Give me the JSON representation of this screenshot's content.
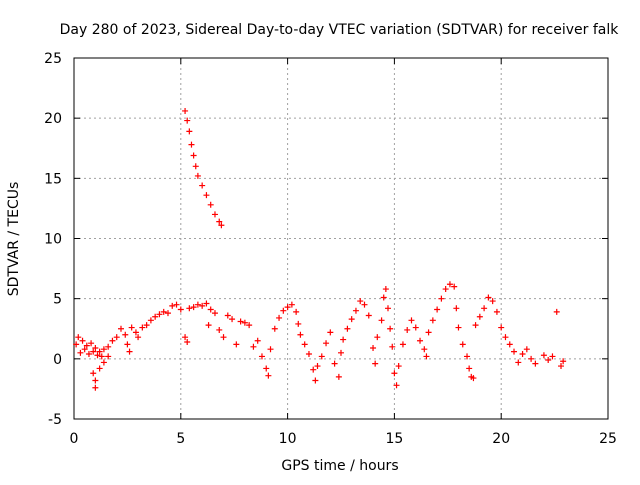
{
  "chart_data": {
    "type": "scatter",
    "title": "Day 280 of 2023, Sidereal Day-to-day VTEC variation (SDTVAR) for receiver falk",
    "xlabel": "GPS time / hours",
    "ylabel": "SDTVAR / TECUs",
    "xlim": [
      0,
      25
    ],
    "ylim": [
      -5,
      25
    ],
    "xticks": [
      0,
      5,
      10,
      15,
      20,
      25
    ],
    "yticks": [
      -5,
      0,
      5,
      10,
      15,
      20,
      25
    ],
    "x_tick_labels": [
      "0",
      "5",
      "10",
      "15",
      "20",
      "25"
    ],
    "y_tick_labels": [
      "-5",
      "0",
      "5",
      "10",
      "15",
      "20",
      "25"
    ],
    "grid": true,
    "marker": "plus",
    "series_color": "#ff0000",
    "series": [
      {
        "name": "SDTVAR",
        "points": [
          [
            0.1,
            1.2
          ],
          [
            0.2,
            1.8
          ],
          [
            0.3,
            0.5
          ],
          [
            0.4,
            1.5
          ],
          [
            0.5,
            0.8
          ],
          [
            0.6,
            1.1
          ],
          [
            0.7,
            0.4
          ],
          [
            0.8,
            1.3
          ],
          [
            0.9,
            0.6
          ],
          [
            1.0,
            0.9
          ],
          [
            1.1,
            0.3
          ],
          [
            1.2,
            0.6
          ],
          [
            1.3,
            0.2
          ],
          [
            1.4,
            0.8
          ],
          [
            1.6,
            1.0
          ],
          [
            1.8,
            1.5
          ],
          [
            0.9,
            -1.2
          ],
          [
            1.0,
            -1.8
          ],
          [
            1.0,
            -2.4
          ],
          [
            1.2,
            -0.8
          ],
          [
            1.4,
            -0.3
          ],
          [
            1.6,
            0.2
          ],
          [
            2.0,
            1.8
          ],
          [
            2.2,
            2.5
          ],
          [
            2.4,
            2.0
          ],
          [
            2.5,
            1.2
          ],
          [
            2.6,
            0.6
          ],
          [
            2.7,
            2.6
          ],
          [
            2.9,
            2.2
          ],
          [
            3.0,
            1.8
          ],
          [
            3.2,
            2.6
          ],
          [
            3.4,
            2.8
          ],
          [
            3.6,
            3.2
          ],
          [
            3.8,
            3.5
          ],
          [
            4.0,
            3.7
          ],
          [
            4.2,
            3.9
          ],
          [
            4.4,
            3.8
          ],
          [
            4.6,
            4.4
          ],
          [
            4.8,
            4.5
          ],
          [
            5.0,
            4.1
          ],
          [
            5.2,
            1.8
          ],
          [
            5.3,
            1.4
          ],
          [
            5.4,
            4.2
          ],
          [
            5.6,
            4.3
          ],
          [
            5.8,
            4.5
          ],
          [
            6.0,
            4.4
          ],
          [
            6.2,
            4.6
          ],
          [
            6.3,
            2.8
          ],
          [
            6.4,
            4.1
          ],
          [
            6.6,
            3.8
          ],
          [
            6.8,
            2.4
          ],
          [
            7.0,
            1.8
          ],
          [
            7.2,
            3.6
          ],
          [
            7.4,
            3.3
          ],
          [
            7.6,
            1.2
          ],
          [
            7.8,
            3.1
          ],
          [
            8.0,
            3.0
          ],
          [
            8.2,
            2.8
          ],
          [
            8.4,
            1.0
          ],
          [
            8.6,
            1.5
          ],
          [
            8.8,
            0.2
          ],
          [
            9.0,
            -0.8
          ],
          [
            9.1,
            -1.4
          ],
          [
            9.2,
            0.8
          ],
          [
            9.4,
            2.5
          ],
          [
            9.6,
            3.4
          ],
          [
            9.8,
            4.0
          ],
          [
            10.0,
            4.3
          ],
          [
            10.2,
            4.5
          ],
          [
            10.4,
            3.9
          ],
          [
            10.5,
            2.9
          ],
          [
            10.6,
            2.0
          ],
          [
            10.8,
            1.2
          ],
          [
            11.0,
            0.4
          ],
          [
            11.2,
            -0.9
          ],
          [
            11.3,
            -1.8
          ],
          [
            11.4,
            -0.6
          ],
          [
            11.6,
            0.2
          ],
          [
            11.8,
            1.3
          ],
          [
            12.0,
            2.2
          ],
          [
            12.2,
            -0.4
          ],
          [
            12.4,
            -1.5
          ],
          [
            12.5,
            0.5
          ],
          [
            12.6,
            1.6
          ],
          [
            12.8,
            2.5
          ],
          [
            13.0,
            3.3
          ],
          [
            13.2,
            4.0
          ],
          [
            13.4,
            4.8
          ],
          [
            13.6,
            4.5
          ],
          [
            13.8,
            3.6
          ],
          [
            14.0,
            0.9
          ],
          [
            14.1,
            -0.4
          ],
          [
            14.2,
            1.8
          ],
          [
            14.4,
            3.2
          ],
          [
            14.5,
            5.1
          ],
          [
            14.6,
            5.8
          ],
          [
            14.7,
            4.2
          ],
          [
            14.8,
            2.5
          ],
          [
            14.9,
            1.0
          ],
          [
            15.0,
            -1.2
          ],
          [
            15.1,
            -2.2
          ],
          [
            15.2,
            -0.6
          ],
          [
            15.4,
            1.2
          ],
          [
            15.6,
            2.4
          ],
          [
            15.8,
            3.2
          ],
          [
            16.0,
            2.6
          ],
          [
            16.2,
            1.5
          ],
          [
            16.4,
            0.8
          ],
          [
            16.5,
            0.2
          ],
          [
            16.6,
            2.2
          ],
          [
            16.8,
            3.2
          ],
          [
            17.0,
            4.1
          ],
          [
            17.2,
            5.0
          ],
          [
            17.4,
            5.8
          ],
          [
            17.6,
            6.2
          ],
          [
            17.8,
            6.0
          ],
          [
            17.9,
            4.2
          ],
          [
            18.0,
            2.6
          ],
          [
            18.2,
            1.2
          ],
          [
            18.4,
            0.2
          ],
          [
            18.5,
            -0.8
          ],
          [
            18.6,
            -1.5
          ],
          [
            18.7,
            -1.6
          ],
          [
            18.8,
            2.8
          ],
          [
            19.0,
            3.5
          ],
          [
            19.2,
            4.2
          ],
          [
            19.4,
            5.1
          ],
          [
            19.6,
            4.8
          ],
          [
            19.8,
            3.9
          ],
          [
            20.0,
            2.6
          ],
          [
            20.2,
            1.8
          ],
          [
            20.4,
            1.2
          ],
          [
            20.6,
            0.6
          ],
          [
            20.8,
            -0.3
          ],
          [
            21.0,
            0.4
          ],
          [
            21.2,
            0.8
          ],
          [
            21.4,
            0.0
          ],
          [
            21.6,
            -0.4
          ],
          [
            22.0,
            0.3
          ],
          [
            22.2,
            -0.1
          ],
          [
            22.4,
            0.2
          ],
          [
            22.6,
            3.9
          ],
          [
            22.8,
            -0.6
          ],
          [
            22.9,
            -0.2
          ],
          [
            5.2,
            20.6
          ],
          [
            5.3,
            19.8
          ],
          [
            5.4,
            18.9
          ],
          [
            5.5,
            17.8
          ],
          [
            5.6,
            16.9
          ],
          [
            5.7,
            16.0
          ],
          [
            5.8,
            15.2
          ],
          [
            6.0,
            14.4
          ],
          [
            6.2,
            13.6
          ],
          [
            6.4,
            12.8
          ],
          [
            6.6,
            12.0
          ],
          [
            6.8,
            11.4
          ],
          [
            6.9,
            11.1
          ]
        ]
      }
    ]
  }
}
